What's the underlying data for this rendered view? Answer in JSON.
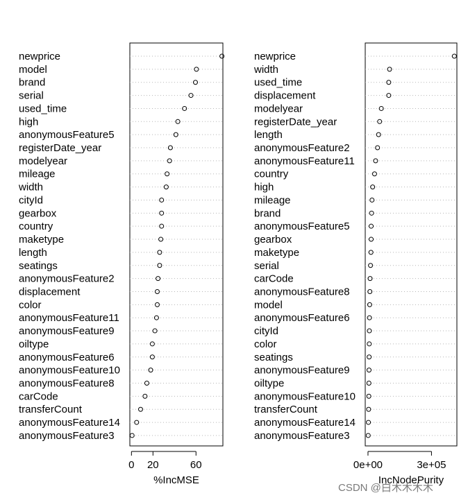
{
  "chart_data": [
    {
      "type": "scatter",
      "xlabel": "%IncMSE",
      "x_ticks": [
        0,
        20,
        60
      ],
      "xlim": [
        -1.5,
        85
      ],
      "categories": [
        "newprice",
        "model",
        "brand",
        "serial",
        "used_time",
        "high",
        "anonymousFeature5",
        "registerDate_year",
        "modelyear",
        "mileage",
        "width",
        "cityId",
        "gearbox",
        "country",
        "maketype",
        "length",
        "seatings",
        "anonymousFeature2",
        "displacement",
        "color",
        "anonymousFeature11",
        "anonymousFeature9",
        "oiltype",
        "anonymousFeature6",
        "anonymousFeature10",
        "anonymousFeature8",
        "carCode",
        "transferCount",
        "anonymousFeature14",
        "anonymousFeature3"
      ],
      "values": [
        84.1,
        60.4,
        59.5,
        55.3,
        49.3,
        43.1,
        41.3,
        36.2,
        35.4,
        33.1,
        32.3,
        28.0,
        28.0,
        28.0,
        27.3,
        26.2,
        26.2,
        24.7,
        24.0,
        24.0,
        23.3,
        21.8,
        19.4,
        19.4,
        17.9,
        14.3,
        12.6,
        8.5,
        4.8,
        0.6
      ]
    },
    {
      "type": "scatter",
      "xlabel": "IncNodePurity",
      "x_ticks": [
        "0e+00",
        "3e+05"
      ],
      "x_tick_values": [
        0,
        300000
      ],
      "xlim": [
        -13000,
        420000
      ],
      "categories": [
        "newprice",
        "width",
        "used_time",
        "displacement",
        "modelyear",
        "registerDate_year",
        "length",
        "anonymousFeature2",
        "anonymousFeature11",
        "country",
        "high",
        "mileage",
        "brand",
        "anonymousFeature5",
        "gearbox",
        "maketype",
        "serial",
        "carCode",
        "anonymousFeature8",
        "model",
        "anonymousFeature6",
        "cityId",
        "color",
        "seatings",
        "anonymousFeature9",
        "oiltype",
        "anonymousFeature10",
        "transferCount",
        "anonymousFeature14",
        "anonymousFeature3"
      ],
      "values": [
        408000,
        102000,
        98000,
        98000,
        63000,
        55000,
        50000,
        45000,
        36000,
        31000,
        22000,
        19000,
        17000,
        15000,
        15000,
        14000,
        12000,
        10000,
        9000,
        8000,
        7000,
        6500,
        6000,
        5500,
        5000,
        4500,
        4000,
        3000,
        2000,
        1000
      ]
    }
  ],
  "watermark": "CSDN @白木木木木"
}
